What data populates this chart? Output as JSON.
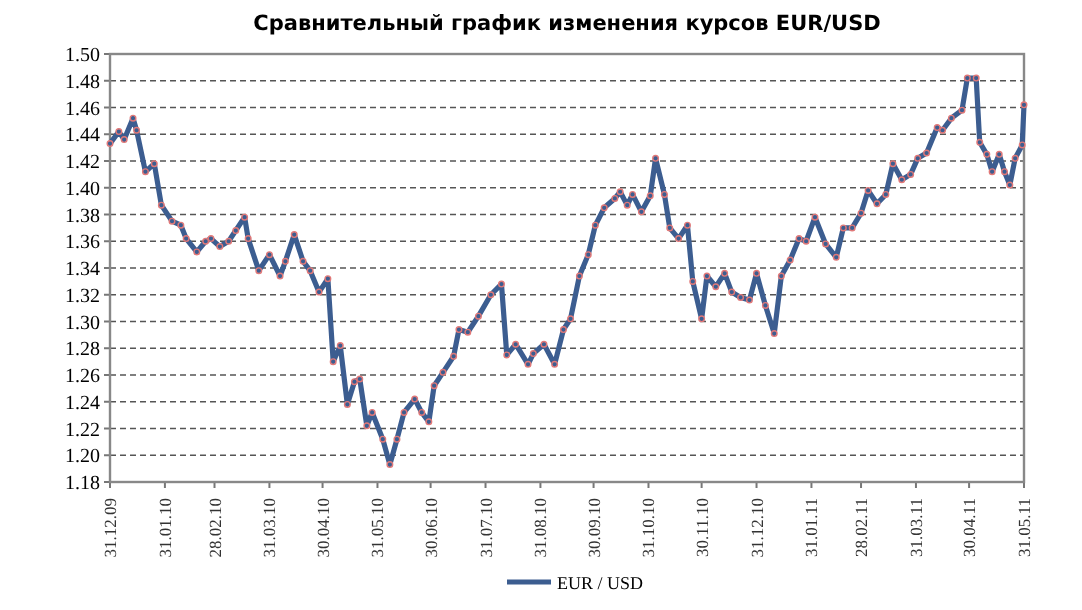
{
  "chart_data": {
    "type": "line",
    "title": "Сравнительный график изменения курсов EUR/USD",
    "x": [
      "2009-12-31",
      "2010-01-05",
      "2010-01-08",
      "2010-01-13",
      "2010-01-15",
      "2010-01-20",
      "2010-01-25",
      "2010-01-29",
      "2010-02-04",
      "2010-02-09",
      "2010-02-12",
      "2010-02-18",
      "2010-02-23",
      "2010-02-26",
      "2010-03-03",
      "2010-03-08",
      "2010-03-12",
      "2010-03-17",
      "2010-03-19",
      "2010-03-25",
      "2010-03-31",
      "2010-04-06",
      "2010-04-09",
      "2010-04-14",
      "2010-04-19",
      "2010-04-23",
      "2010-04-28",
      "2010-05-03",
      "2010-05-06",
      "2010-05-10",
      "2010-05-14",
      "2010-05-18",
      "2010-05-21",
      "2010-05-25",
      "2010-05-28",
      "2010-06-03",
      "2010-06-07",
      "2010-06-11",
      "2010-06-15",
      "2010-06-21",
      "2010-06-25",
      "2010-06-29",
      "2010-07-02",
      "2010-07-07",
      "2010-07-13",
      "2010-07-16",
      "2010-07-21",
      "2010-07-27",
      "2010-08-03",
      "2010-08-09",
      "2010-08-12",
      "2010-08-17",
      "2010-08-24",
      "2010-08-27",
      "2010-09-02",
      "2010-09-08",
      "2010-09-13",
      "2010-09-17",
      "2010-09-22",
      "2010-09-27",
      "2010-10-01",
      "2010-10-06",
      "2010-10-12",
      "2010-10-15",
      "2010-10-19",
      "2010-10-22",
      "2010-10-27",
      "2010-11-01",
      "2010-11-04",
      "2010-11-09",
      "2010-11-12",
      "2010-11-17",
      "2010-11-22",
      "2010-11-25",
      "2010-11-30",
      "2010-12-03",
      "2010-12-08",
      "2010-12-13",
      "2010-12-17",
      "2010-12-22",
      "2010-12-27",
      "2010-12-31",
      "2011-01-05",
      "2011-01-10",
      "2011-01-14",
      "2011-01-19",
      "2011-01-24",
      "2011-01-28",
      "2011-02-02",
      "2011-02-08",
      "2011-02-14",
      "2011-02-18",
      "2011-02-23",
      "2011-02-28",
      "2011-03-04",
      "2011-03-09",
      "2011-03-14",
      "2011-03-18",
      "2011-03-23",
      "2011-03-28",
      "2011-04-01",
      "2011-04-06",
      "2011-04-12",
      "2011-04-15",
      "2011-04-20",
      "2011-04-26",
      "2011-04-29",
      "2011-05-04",
      "2011-05-06",
      "2011-05-10",
      "2011-05-13",
      "2011-05-17",
      "2011-05-20",
      "2011-05-23",
      "2011-05-26",
      "2011-05-30",
      "2011-05-31"
    ],
    "series": [
      {
        "name": "EUR / USD",
        "color": "#3c5d90",
        "values": [
          1.433,
          1.442,
          1.436,
          1.452,
          1.443,
          1.412,
          1.418,
          1.387,
          1.375,
          1.372,
          1.362,
          1.352,
          1.36,
          1.362,
          1.356,
          1.36,
          1.368,
          1.378,
          1.362,
          1.338,
          1.35,
          1.334,
          1.345,
          1.365,
          1.345,
          1.338,
          1.322,
          1.332,
          1.27,
          1.282,
          1.238,
          1.255,
          1.257,
          1.222,
          1.232,
          1.212,
          1.193,
          1.212,
          1.232,
          1.242,
          1.232,
          1.225,
          1.252,
          1.262,
          1.274,
          1.294,
          1.292,
          1.304,
          1.32,
          1.328,
          1.275,
          1.283,
          1.268,
          1.276,
          1.283,
          1.268,
          1.294,
          1.302,
          1.334,
          1.35,
          1.372,
          1.385,
          1.392,
          1.397,
          1.387,
          1.395,
          1.382,
          1.394,
          1.422,
          1.395,
          1.37,
          1.362,
          1.372,
          1.33,
          1.302,
          1.334,
          1.326,
          1.336,
          1.322,
          1.318,
          1.316,
          1.336,
          1.312,
          1.291,
          1.334,
          1.346,
          1.362,
          1.36,
          1.378,
          1.358,
          1.348,
          1.37,
          1.37,
          1.381,
          1.398,
          1.388,
          1.395,
          1.418,
          1.406,
          1.41,
          1.422,
          1.426,
          1.445,
          1.443,
          1.452,
          1.458,
          1.482,
          1.482,
          1.434,
          1.425,
          1.412,
          1.425,
          1.412,
          1.402,
          1.422,
          1.432,
          1.462
        ]
      }
    ],
    "xlim": [
      "2009-12-31",
      "2011-05-31"
    ],
    "xticks": [
      {
        "value": "2009-12-31",
        "label": "31.12.09"
      },
      {
        "value": "2010-01-31",
        "label": "31.01.10"
      },
      {
        "value": "2010-02-28",
        "label": "28.02.10"
      },
      {
        "value": "2010-03-31",
        "label": "31.03.10"
      },
      {
        "value": "2010-04-30",
        "label": "30.04.10"
      },
      {
        "value": "2010-05-31",
        "label": "31.05.10"
      },
      {
        "value": "2010-06-30",
        "label": "30.06.10"
      },
      {
        "value": "2010-07-31",
        "label": "31.07.10"
      },
      {
        "value": "2010-08-31",
        "label": "31.08.10"
      },
      {
        "value": "2010-09-30",
        "label": "30.09.10"
      },
      {
        "value": "2010-10-31",
        "label": "31.10.10"
      },
      {
        "value": "2010-11-30",
        "label": "30.11.10"
      },
      {
        "value": "2010-12-31",
        "label": "31.12.10"
      },
      {
        "value": "2011-01-31",
        "label": "31.01.11"
      },
      {
        "value": "2011-02-28",
        "label": "28.02.11"
      },
      {
        "value": "2011-03-31",
        "label": "31.03.11"
      },
      {
        "value": "2011-04-30",
        "label": "30.04.11"
      },
      {
        "value": "2011-05-31",
        "label": "31.05.11"
      }
    ],
    "ylim": [
      1.18,
      1.5
    ],
    "yticks": [
      {
        "value": 1.18,
        "label": "1.18"
      },
      {
        "value": 1.2,
        "label": "1.20"
      },
      {
        "value": 1.22,
        "label": "1.22"
      },
      {
        "value": 1.24,
        "label": "1.24"
      },
      {
        "value": 1.26,
        "label": "1.26"
      },
      {
        "value": 1.28,
        "label": "1.28"
      },
      {
        "value": 1.3,
        "label": "1.30"
      },
      {
        "value": 1.32,
        "label": "1.32"
      },
      {
        "value": 1.34,
        "label": "1.34"
      },
      {
        "value": 1.36,
        "label": "1.36"
      },
      {
        "value": 1.38,
        "label": "1.38"
      },
      {
        "value": 1.4,
        "label": "1.40"
      },
      {
        "value": 1.42,
        "label": "1.42"
      },
      {
        "value": 1.44,
        "label": "1.44"
      },
      {
        "value": 1.46,
        "label": "1.46"
      },
      {
        "value": 1.48,
        "label": "1.48"
      },
      {
        "value": 1.5,
        "label": "1.50"
      }
    ],
    "grid": "y",
    "legend": "bottom",
    "marker": "circle",
    "line_style": "solid"
  }
}
